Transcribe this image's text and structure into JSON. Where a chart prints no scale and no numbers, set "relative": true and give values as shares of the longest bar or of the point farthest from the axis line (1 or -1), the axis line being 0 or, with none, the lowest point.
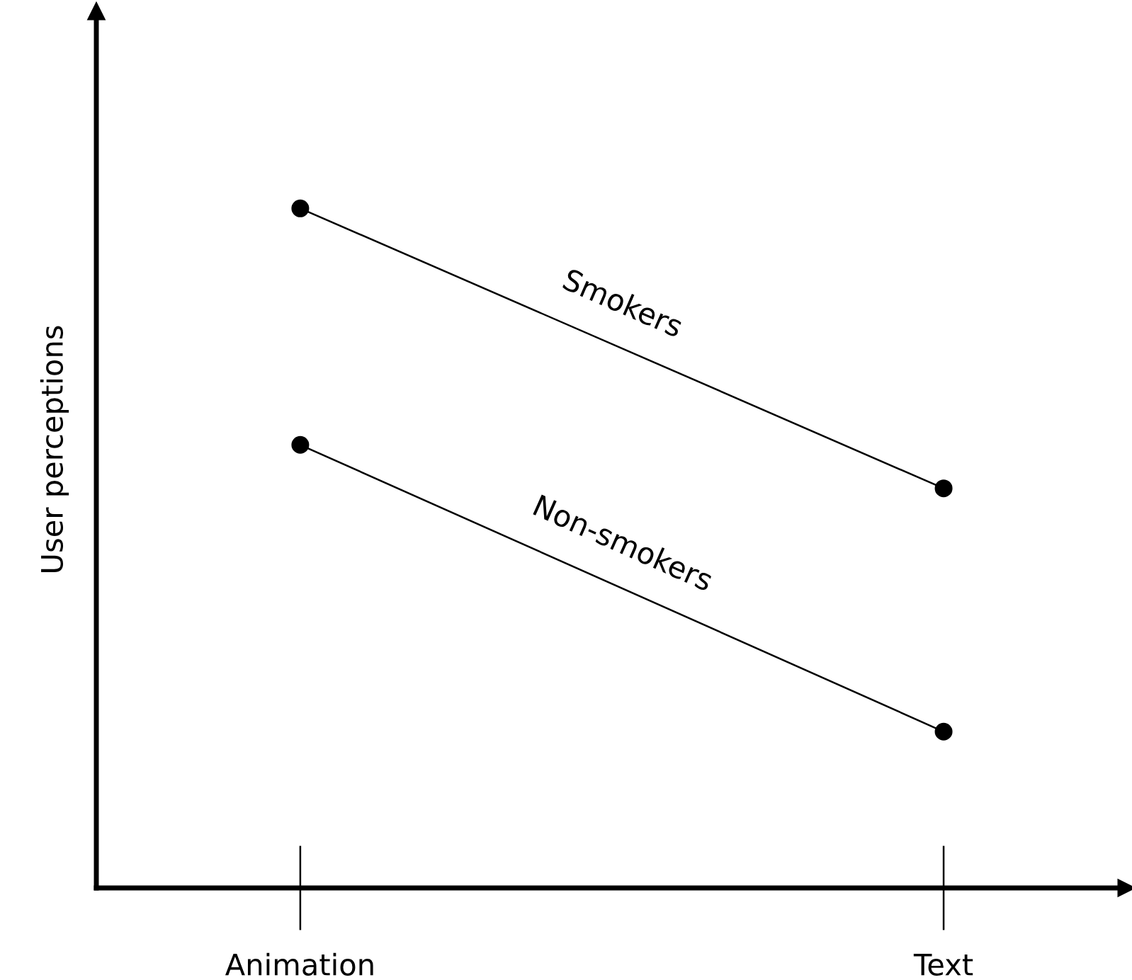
{
  "chart_data": {
    "type": "line",
    "relative": true,
    "ylabel": "User perceptions",
    "categories": [
      "Animation",
      "Text"
    ],
    "marker": "circle",
    "line_style": "solid",
    "legend": false,
    "grid": false,
    "series": [
      {
        "name": "Smokers",
        "color": "#000000",
        "values": [
          1,
          0.588
        ]
      },
      {
        "name": "Non-smokers",
        "color": "#000000",
        "values": [
          0.652,
          0.23
        ]
      }
    ]
  }
}
